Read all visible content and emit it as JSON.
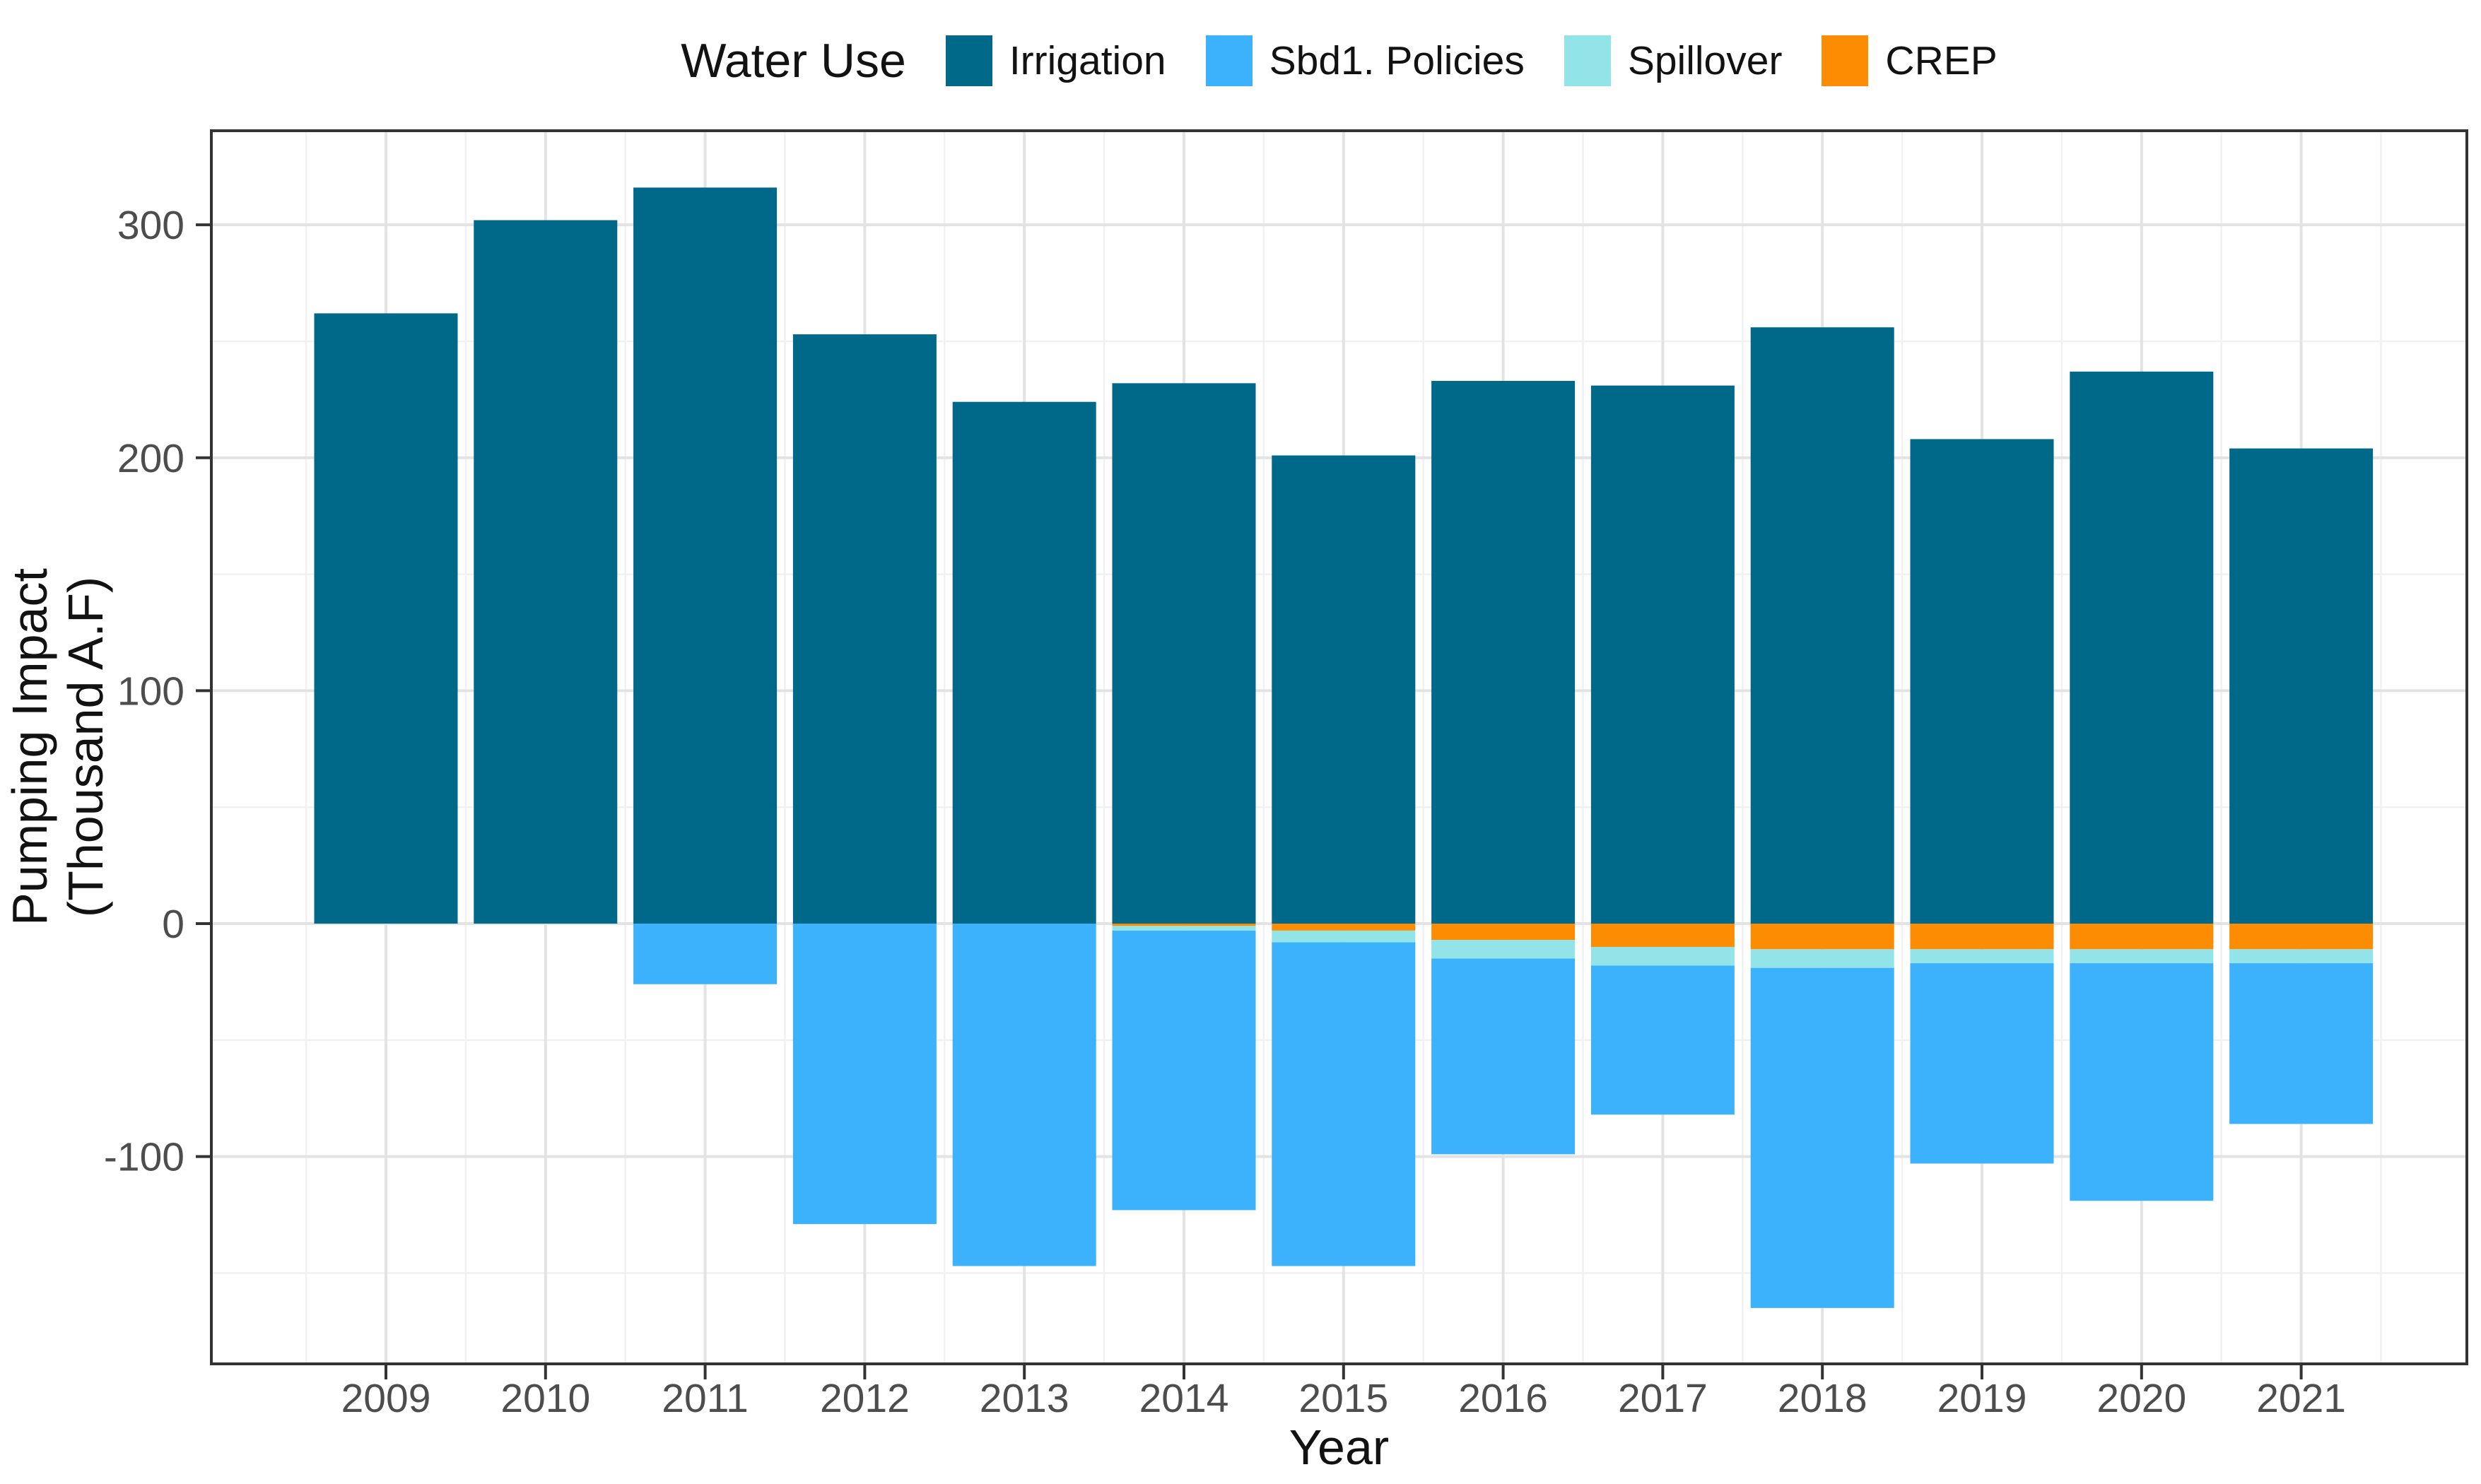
{
  "page": {
    "background": "#ffffff"
  },
  "legend": {
    "title": "Water Use",
    "items": [
      {
        "label": "Irrigation",
        "color": "#006989"
      },
      {
        "label": "Sbd1. Policies",
        "color": "#3DB2FC"
      },
      {
        "label": "Spillover",
        "color": "#92E4E8"
      },
      {
        "label": "CREP",
        "color": "#FC8D02"
      }
    ]
  },
  "axes": {
    "x": {
      "title": "Year"
    },
    "y": {
      "title_line1": "Pumping Impact",
      "title_line2": "(Thousand A.F)"
    }
  },
  "chart_data": {
    "type": "bar",
    "stacked": true,
    "title": "",
    "legend_title": "Water Use",
    "legend_position": "top",
    "xlabel": "Year",
    "ylabel": "Pumping Impact (Thousand A.F)",
    "categories": [
      "2009",
      "2010",
      "2011",
      "2012",
      "2013",
      "2014",
      "2015",
      "2016",
      "2017",
      "2018",
      "2019",
      "2020",
      "2021"
    ],
    "series": [
      {
        "name": "Irrigation",
        "color": "#006989",
        "values": [
          262,
          302,
          316,
          253,
          224,
          232,
          201,
          233,
          231,
          256,
          208,
          237,
          204
        ]
      },
      {
        "name": "Sbd1. Policies",
        "color": "#3DB2FC",
        "values": [
          0,
          0,
          -26,
          -129,
          -147,
          -120,
          -139,
          -84,
          -64,
          -146,
          -86,
          -102,
          -69
        ]
      },
      {
        "name": "Spillover",
        "color": "#92E4E8",
        "values": [
          0,
          0,
          0,
          0,
          0,
          -2,
          -5,
          -8,
          -8,
          -8,
          -6,
          -6,
          -6
        ]
      },
      {
        "name": "CREP",
        "color": "#FC8D02",
        "values": [
          0,
          0,
          0,
          0,
          0,
          -1,
          -3,
          -7,
          -10,
          -11,
          -11,
          -11,
          -11
        ]
      }
    ],
    "negative_stack_order_from_zero": [
      "CREP",
      "Spillover",
      "Sbd1. Policies"
    ],
    "ylim": [
      -189,
      340.4
    ],
    "yticks_major": [
      300,
      200,
      100,
      0,
      -100
    ],
    "yticks_minor": [
      250,
      150,
      50,
      -50,
      -150
    ],
    "grid": true,
    "bar_width_fraction": 0.9
  },
  "style": {
    "grid_major": "#E3E3E3",
    "grid_minor": "#F1F1F1",
    "panel_border": "#333333",
    "tick_color": "#333333",
    "tick_label_color": "#4D4D4D",
    "title_color": "#121212"
  }
}
